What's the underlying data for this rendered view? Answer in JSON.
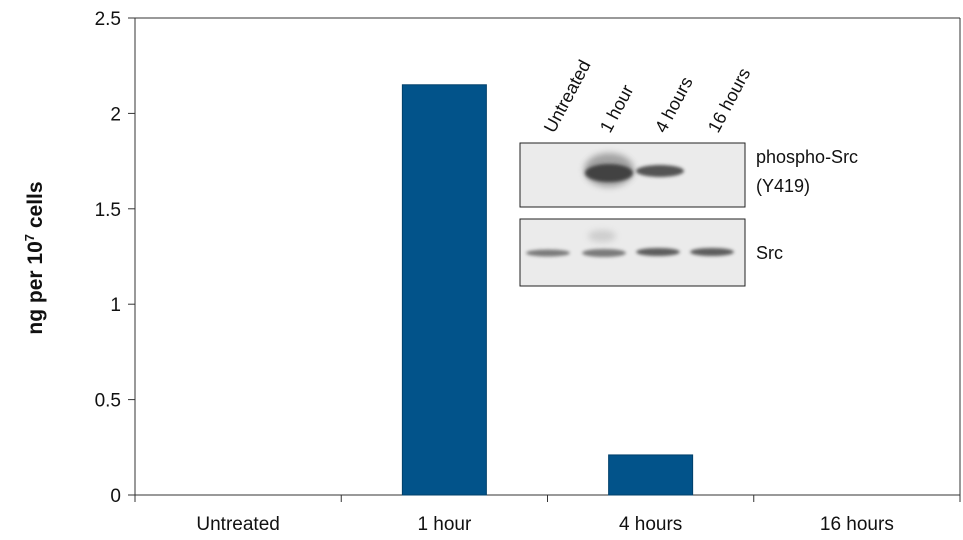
{
  "chart_data": {
    "type": "bar",
    "categories": [
      "Untreated",
      "1 hour",
      "4 hours",
      "16 hours"
    ],
    "values": [
      0,
      2.15,
      0.21,
      0
    ],
    "ylabel_main": "ng per 10",
    "ylabel_sup": "7",
    "ylabel_end": " cells",
    "ylim": [
      0,
      2.5
    ],
    "yticks": [
      "0",
      "0.5",
      "1",
      "1.5",
      "2",
      "2.5"
    ],
    "ytick_values": [
      0,
      0.5,
      1,
      1.5,
      2,
      2.5
    ],
    "bar_color": "#02538a",
    "grid": false
  },
  "inset": {
    "lanes": [
      "Untreated",
      "1 hour",
      "4 hours",
      "16 hours"
    ],
    "blots": [
      {
        "label_line1": "phospho-Src",
        "label_line2": "(Y419)"
      },
      {
        "label_line1": "Src",
        "label_line2": ""
      }
    ]
  }
}
